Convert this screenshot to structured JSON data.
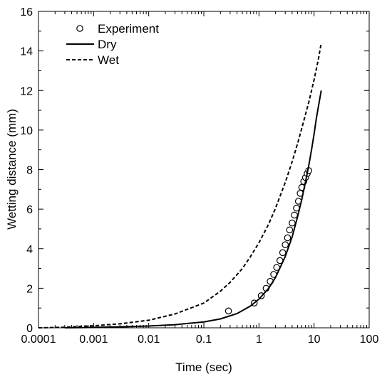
{
  "chart_data": {
    "type": "line",
    "xlabel": "Time (sec)",
    "ylabel": "Wetting distance (mm)",
    "x_scale": "log",
    "xlim": [
      0.0001,
      100
    ],
    "ylim": [
      0,
      16
    ],
    "x_ticks": [
      0.0001,
      0.001,
      0.01,
      0.1,
      1,
      10,
      100
    ],
    "x_tick_labels": [
      "0.0001",
      "0.001",
      "0.01",
      "0.1",
      "1",
      "10",
      "100"
    ],
    "y_ticks": [
      0,
      2,
      4,
      6,
      8,
      10,
      12,
      14,
      16
    ],
    "y_tick_labels": [
      "0",
      "2",
      "4",
      "6",
      "8",
      "10",
      "12",
      "14",
      "16"
    ],
    "grid": false,
    "legend_position": "top-left",
    "series": [
      {
        "name": "Experiment",
        "style": "markers",
        "marker": "open-circle",
        "color": "#000000",
        "x": [
          0.28,
          0.82,
          1.1,
          1.35,
          1.6,
          1.85,
          2.1,
          2.4,
          2.7,
          3.0,
          3.3,
          3.6,
          4.0,
          4.4,
          4.8,
          5.2,
          5.6,
          6.0,
          6.5,
          7.0,
          7.5,
          8.0
        ],
        "y": [
          0.85,
          1.25,
          1.62,
          2.0,
          2.35,
          2.7,
          3.05,
          3.4,
          3.8,
          4.2,
          4.55,
          4.95,
          5.3,
          5.7,
          6.05,
          6.4,
          6.8,
          7.1,
          7.4,
          7.6,
          7.8,
          7.95
        ]
      },
      {
        "name": "Dry",
        "style": "solid",
        "color": "#000000",
        "x": [
          0.0003,
          0.001,
          0.003,
          0.01,
          0.03,
          0.1,
          0.2,
          0.4,
          0.7,
          1,
          1.5,
          2,
          3,
          4,
          5,
          6,
          7,
          8,
          9,
          10,
          11,
          12,
          13.5
        ],
        "y": [
          0.0,
          0.02,
          0.05,
          0.09,
          0.16,
          0.3,
          0.45,
          0.72,
          1.1,
          1.45,
          2.0,
          2.55,
          3.6,
          4.6,
          5.6,
          6.5,
          7.4,
          8.2,
          9.0,
          9.8,
          10.6,
          11.2,
          12.0
        ]
      },
      {
        "name": "Wet",
        "style": "dashed",
        "color": "#000000",
        "x": [
          0.0001,
          0.0003,
          0.001,
          0.003,
          0.01,
          0.03,
          0.1,
          0.2,
          0.3,
          0.5,
          0.7,
          1,
          1.5,
          2,
          3,
          4,
          5,
          6,
          7,
          8,
          10,
          12,
          13.5
        ],
        "y": [
          0.0,
          0.03,
          0.1,
          0.2,
          0.38,
          0.7,
          1.25,
          1.85,
          2.3,
          3.0,
          3.6,
          4.3,
          5.25,
          6.05,
          7.35,
          8.4,
          9.3,
          10.1,
          10.8,
          11.4,
          12.55,
          13.6,
          14.4
        ]
      }
    ]
  }
}
